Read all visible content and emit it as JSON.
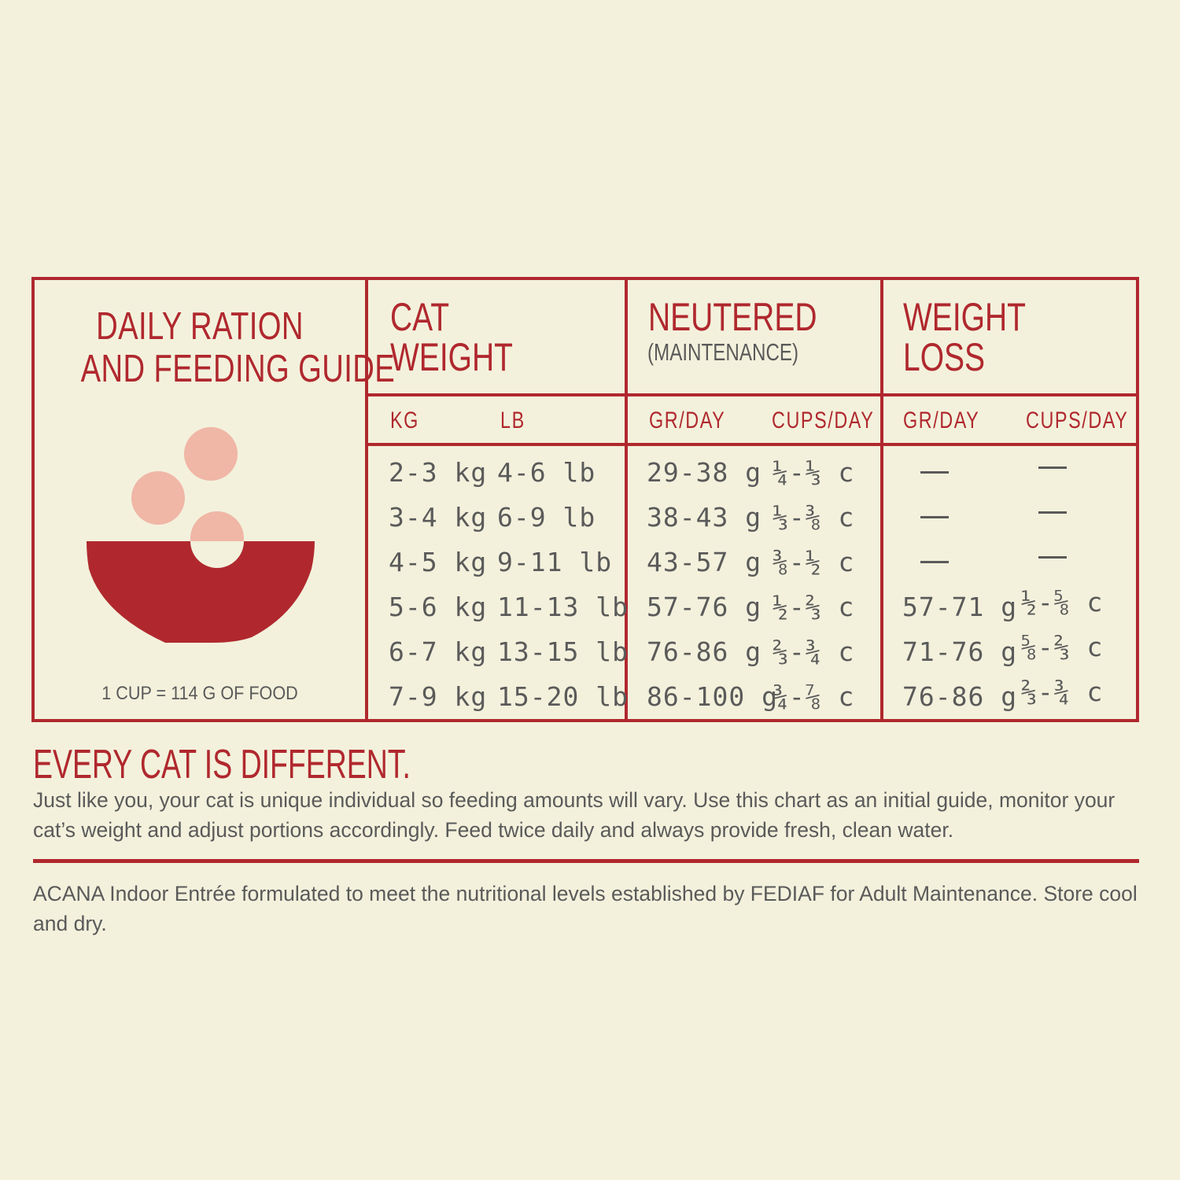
{
  "guide": {
    "title_line1": "DAILY RATION",
    "title_line2": "AND FEEDING GUIDE",
    "cup_note": "1 CUP = 114 G OF FOOD",
    "illustration": "bowl-with-kibble-icon"
  },
  "headers": {
    "cat_weight_line1": "CAT",
    "cat_weight_line2": "WEIGHT",
    "neutered": "NEUTERED",
    "neutered_sub": "(MAINTENANCE)",
    "weight_loss_line1": "WEIGHT",
    "weight_loss_line2": "LOSS"
  },
  "subheaders": {
    "kg": "KG",
    "lb": "LB",
    "neutered_gr": "GR/DAY",
    "neutered_cups": "CUPS/DAY",
    "loss_gr": "GR/DAY",
    "loss_cups": "CUPS/DAY"
  },
  "rows": [
    {
      "kg": "2-3 kg",
      "lb": "4-6 lb",
      "n_gr": "29-38 g",
      "n_cups": "¼-⅓ c",
      "l_gr": "—",
      "l_cups": "—"
    },
    {
      "kg": "3-4 kg",
      "lb": "6-9 lb",
      "n_gr": "38-43 g",
      "n_cups": "⅓-⅜ c",
      "l_gr": "—",
      "l_cups": "—"
    },
    {
      "kg": "4-5 kg",
      "lb": "9-11 lb",
      "n_gr": "43-57 g",
      "n_cups": "⅜-½ c",
      "l_gr": "—",
      "l_cups": "—"
    },
    {
      "kg": "5-6 kg",
      "lb": "11-13 lb",
      "n_gr": "57-76 g",
      "n_cups": "½-⅔ c",
      "l_gr": "57-71 g",
      "l_cups": "½-⅝ c"
    },
    {
      "kg": "6-7 kg",
      "lb": "13-15 lb",
      "n_gr": "76-86 g",
      "n_cups": "⅔-¾ c",
      "l_gr": "71-76 g",
      "l_cups": "⅝-⅔ c"
    },
    {
      "kg": "7-9 kg",
      "lb": "15-20 lb",
      "n_gr": "86-100 g",
      "n_cups": "¾-⅞ c",
      "l_gr": "76-86 g",
      "l_cups": "⅔-¾ c"
    }
  ],
  "tagline": "EVERY CAT IS DIFFERENT.",
  "paragraph": "Just like you, your cat is unique individual so feeding amounts will vary. Use this chart as an initial guide, monitor your cat’s weight and adjust portions accordingly. Feed twice daily and always provide fresh, clean water.",
  "footnote": "ACANA Indoor Entrée formulated to meet the nutritional levels established by FEDIAF  for Adult Maintenance. Store cool and dry.",
  "colors": {
    "accent": "#b0282e",
    "kibble": "#f0b6a6",
    "background": "#f3f1dc",
    "text": "#5a5a5a"
  }
}
